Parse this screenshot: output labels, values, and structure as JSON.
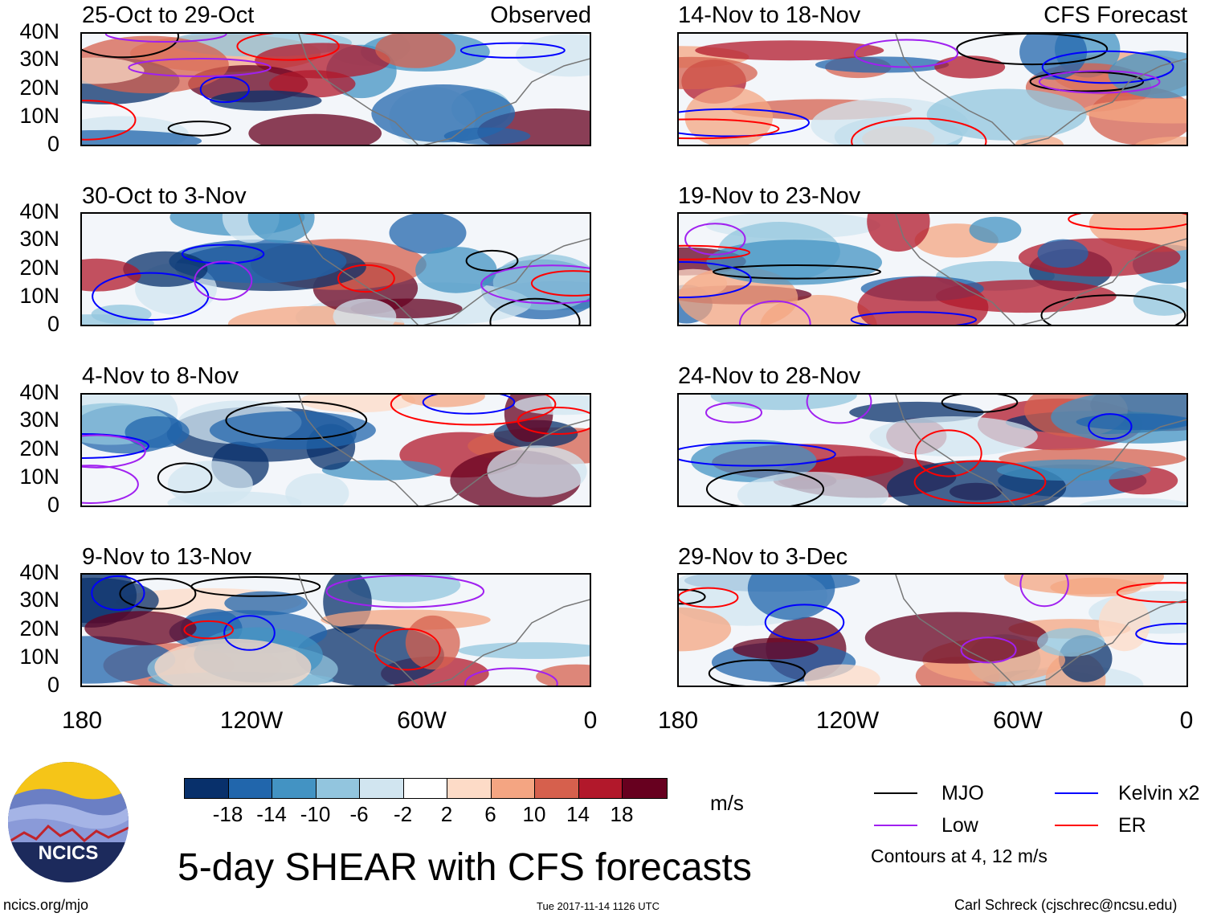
{
  "header": {
    "observed_label": "Observed",
    "forecast_label": "CFS Forecast"
  },
  "panels_left": [
    {
      "title": "25-Oct to 29-Oct"
    },
    {
      "title": "30-Oct to 3-Nov"
    },
    {
      "title": "4-Nov to 8-Nov"
    },
    {
      "title": "9-Nov to 13-Nov"
    }
  ],
  "panels_right": [
    {
      "title": "14-Nov to 18-Nov"
    },
    {
      "title": "19-Nov to 23-Nov"
    },
    {
      "title": "24-Nov to 28-Nov"
    },
    {
      "title": "29-Nov to 3-Dec"
    }
  ],
  "lat_labels": [
    "40N",
    "30N",
    "20N",
    "10N",
    "0"
  ],
  "lon_labels": [
    "180",
    "120W",
    "60W",
    "0"
  ],
  "colorbar": {
    "colors": [
      "#08306b",
      "#2166ac",
      "#4393c3",
      "#92c5de",
      "#d1e5f0",
      "#ffffff",
      "#fddbc7",
      "#f4a582",
      "#d6604d",
      "#b2182b",
      "#67001f"
    ],
    "ticks": [
      "-18",
      "-14",
      "-10",
      "-6",
      "-2",
      "2",
      "6",
      "10",
      "14",
      "18"
    ],
    "units": "m/s"
  },
  "legend": {
    "mjo": "MJO",
    "mjo_color": "#000000",
    "kelvin": "Kelvin x2",
    "kelvin_color": "#0000ff",
    "low": "Low",
    "low_color": "#a020f0",
    "er": "ER",
    "er_color": "#ff0000",
    "contours": "Contours at 4, 12 m/s"
  },
  "title": "5-day SHEAR with CFS forecasts",
  "logo_text": "NCICS",
  "footer": {
    "url": "ncics.org/mjo",
    "timestamp": "Tue 2017-11-14 1126 UTC",
    "credit": "Carl Schreck (cjschrec@ncsu.edu)"
  }
}
